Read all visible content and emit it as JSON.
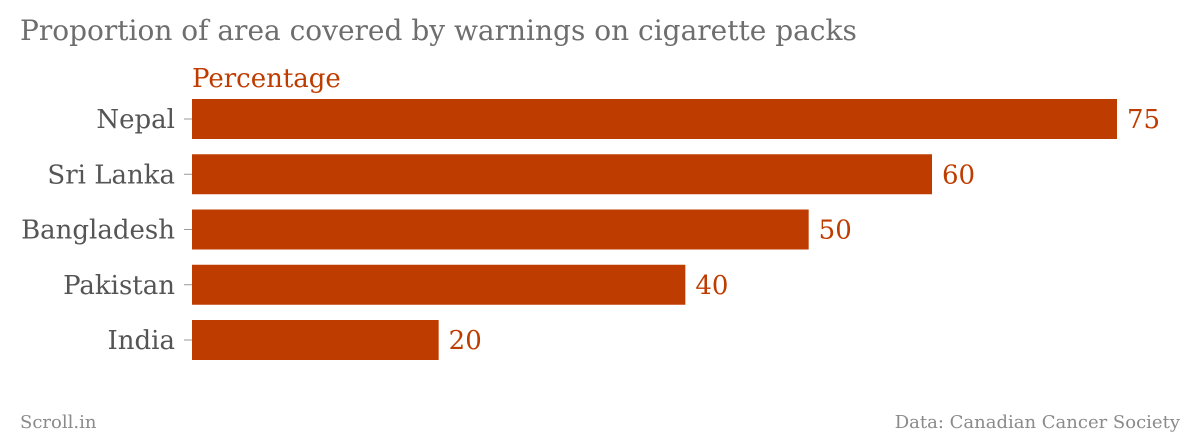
{
  "chart_data": {
    "type": "bar",
    "orientation": "horizontal",
    "title": "Proportion of area covered by warnings on cigarette packs",
    "value_label": "Percentage",
    "categories": [
      "Nepal",
      "Sri Lanka",
      "Bangladesh",
      "Pakistan",
      "India"
    ],
    "values": [
      75,
      60,
      50,
      40,
      20
    ],
    "xlim": [
      0,
      75
    ],
    "grid": false,
    "legend": "none",
    "colors": {
      "bar": "#bf3c00",
      "value_text": "#bf3c00",
      "category_text": "#555555"
    }
  },
  "footer": {
    "source_left": "Scroll.in",
    "source_right": "Data: Canadian Cancer Society"
  }
}
